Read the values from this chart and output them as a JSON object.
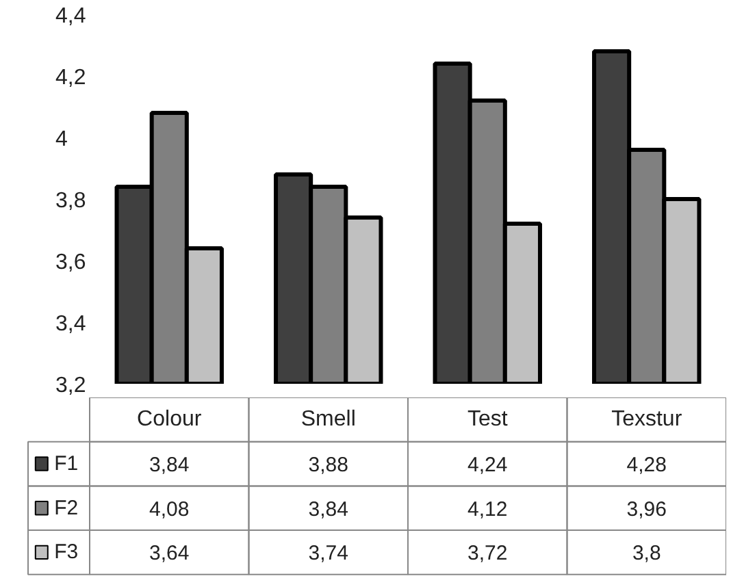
{
  "chart_data": {
    "type": "bar",
    "categories": [
      "Colour",
      "Smell",
      "Test",
      "Texstur"
    ],
    "series": [
      {
        "name": "F1",
        "color": "#404040",
        "values": [
          3.84,
          3.88,
          4.24,
          4.28
        ],
        "value_labels": [
          "3,84",
          "3,88",
          "4,24",
          "4,28"
        ]
      },
      {
        "name": "F2",
        "color": "#808080",
        "values": [
          4.08,
          3.84,
          4.12,
          3.96
        ],
        "value_labels": [
          "4,08",
          "3,84",
          "4,12",
          "3,96"
        ]
      },
      {
        "name": "F3",
        "color": "#c0c0c0",
        "values": [
          3.64,
          3.74,
          3.72,
          3.8
        ],
        "value_labels": [
          "3,64",
          "3,74",
          "3,72",
          "3,8"
        ]
      }
    ],
    "ylim": [
      3.2,
      4.4
    ],
    "legend": "bottom",
    "yticks": [
      {
        "value": 3.2,
        "label": "3,2"
      },
      {
        "value": 3.4,
        "label": "3,4"
      },
      {
        "value": 3.6,
        "label": "3,6"
      },
      {
        "value": 3.8,
        "label": "3,8"
      },
      {
        "value": 4,
        "label": "4"
      },
      {
        "value": 4.2,
        "label": "4,2"
      },
      {
        "value": 4.4,
        "label": "4,4"
      }
    ]
  }
}
